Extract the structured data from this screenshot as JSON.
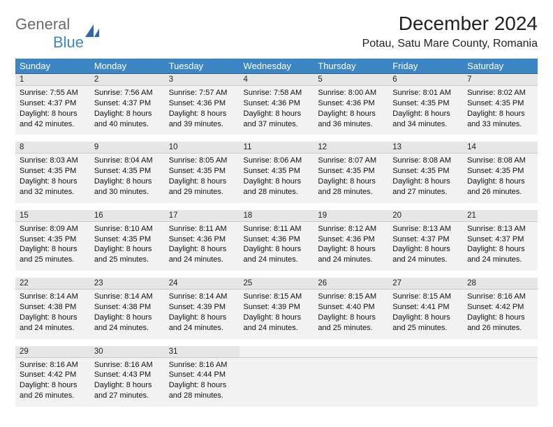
{
  "brand": {
    "general": "General",
    "blue": "Blue"
  },
  "title": "December 2024",
  "location": "Potau, Satu Mare County, Romania",
  "dayHeaders": [
    "Sunday",
    "Monday",
    "Tuesday",
    "Wednesday",
    "Thursday",
    "Friday",
    "Saturday"
  ],
  "colors": {
    "headerBg": "#3d86c6",
    "headerFg": "#ffffff",
    "dayNumBg": "#e6e6e6",
    "cellBg": "#f2f2f2",
    "ruleTop": "#2a5f8f"
  },
  "typography": {
    "title_pt": 28,
    "location_pt": 16,
    "dayheader_pt": 13,
    "cell_pt": 11
  },
  "weeks": [
    [
      {
        "n": "1",
        "sr": "7:55 AM",
        "ss": "4:37 PM",
        "dl": "8 hours and 42 minutes."
      },
      {
        "n": "2",
        "sr": "7:56 AM",
        "ss": "4:37 PM",
        "dl": "8 hours and 40 minutes."
      },
      {
        "n": "3",
        "sr": "7:57 AM",
        "ss": "4:36 PM",
        "dl": "8 hours and 39 minutes."
      },
      {
        "n": "4",
        "sr": "7:58 AM",
        "ss": "4:36 PM",
        "dl": "8 hours and 37 minutes."
      },
      {
        "n": "5",
        "sr": "8:00 AM",
        "ss": "4:36 PM",
        "dl": "8 hours and 36 minutes."
      },
      {
        "n": "6",
        "sr": "8:01 AM",
        "ss": "4:35 PM",
        "dl": "8 hours and 34 minutes."
      },
      {
        "n": "7",
        "sr": "8:02 AM",
        "ss": "4:35 PM",
        "dl": "8 hours and 33 minutes."
      }
    ],
    [
      {
        "n": "8",
        "sr": "8:03 AM",
        "ss": "4:35 PM",
        "dl": "8 hours and 32 minutes."
      },
      {
        "n": "9",
        "sr": "8:04 AM",
        "ss": "4:35 PM",
        "dl": "8 hours and 30 minutes."
      },
      {
        "n": "10",
        "sr": "8:05 AM",
        "ss": "4:35 PM",
        "dl": "8 hours and 29 minutes."
      },
      {
        "n": "11",
        "sr": "8:06 AM",
        "ss": "4:35 PM",
        "dl": "8 hours and 28 minutes."
      },
      {
        "n": "12",
        "sr": "8:07 AM",
        "ss": "4:35 PM",
        "dl": "8 hours and 28 minutes."
      },
      {
        "n": "13",
        "sr": "8:08 AM",
        "ss": "4:35 PM",
        "dl": "8 hours and 27 minutes."
      },
      {
        "n": "14",
        "sr": "8:08 AM",
        "ss": "4:35 PM",
        "dl": "8 hours and 26 minutes."
      }
    ],
    [
      {
        "n": "15",
        "sr": "8:09 AM",
        "ss": "4:35 PM",
        "dl": "8 hours and 25 minutes."
      },
      {
        "n": "16",
        "sr": "8:10 AM",
        "ss": "4:35 PM",
        "dl": "8 hours and 25 minutes."
      },
      {
        "n": "17",
        "sr": "8:11 AM",
        "ss": "4:36 PM",
        "dl": "8 hours and 24 minutes."
      },
      {
        "n": "18",
        "sr": "8:11 AM",
        "ss": "4:36 PM",
        "dl": "8 hours and 24 minutes."
      },
      {
        "n": "19",
        "sr": "8:12 AM",
        "ss": "4:36 PM",
        "dl": "8 hours and 24 minutes."
      },
      {
        "n": "20",
        "sr": "8:13 AM",
        "ss": "4:37 PM",
        "dl": "8 hours and 24 minutes."
      },
      {
        "n": "21",
        "sr": "8:13 AM",
        "ss": "4:37 PM",
        "dl": "8 hours and 24 minutes."
      }
    ],
    [
      {
        "n": "22",
        "sr": "8:14 AM",
        "ss": "4:38 PM",
        "dl": "8 hours and 24 minutes."
      },
      {
        "n": "23",
        "sr": "8:14 AM",
        "ss": "4:38 PM",
        "dl": "8 hours and 24 minutes."
      },
      {
        "n": "24",
        "sr": "8:14 AM",
        "ss": "4:39 PM",
        "dl": "8 hours and 24 minutes."
      },
      {
        "n": "25",
        "sr": "8:15 AM",
        "ss": "4:39 PM",
        "dl": "8 hours and 24 minutes."
      },
      {
        "n": "26",
        "sr": "8:15 AM",
        "ss": "4:40 PM",
        "dl": "8 hours and 25 minutes."
      },
      {
        "n": "27",
        "sr": "8:15 AM",
        "ss": "4:41 PM",
        "dl": "8 hours and 25 minutes."
      },
      {
        "n": "28",
        "sr": "8:16 AM",
        "ss": "4:42 PM",
        "dl": "8 hours and 26 minutes."
      }
    ],
    [
      {
        "n": "29",
        "sr": "8:16 AM",
        "ss": "4:42 PM",
        "dl": "8 hours and 26 minutes."
      },
      {
        "n": "30",
        "sr": "8:16 AM",
        "ss": "4:43 PM",
        "dl": "8 hours and 27 minutes."
      },
      {
        "n": "31",
        "sr": "8:16 AM",
        "ss": "4:44 PM",
        "dl": "8 hours and 28 minutes."
      },
      null,
      null,
      null,
      null
    ]
  ],
  "labels": {
    "sunrise": "Sunrise:",
    "sunset": "Sunset:",
    "daylight": "Daylight:"
  }
}
